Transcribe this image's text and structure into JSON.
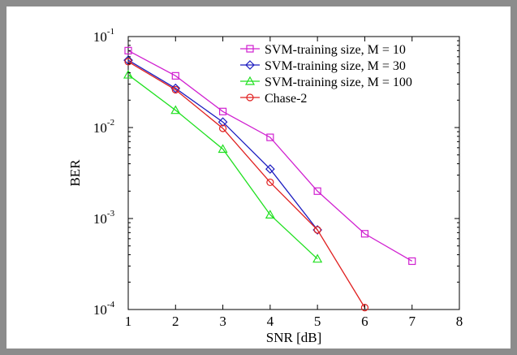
{
  "chart_data": {
    "type": "line",
    "xlabel": "SNR [dB]",
    "ylabel": "BER",
    "xlim": [
      1,
      8
    ],
    "ylim": [
      0.0001,
      0.1
    ],
    "yscale": "log",
    "grid": false,
    "legend_position": "top-right",
    "x_ticks": [
      "1",
      "2",
      "3",
      "4",
      "5",
      "6",
      "7",
      "8"
    ],
    "y_ticks": [
      {
        "base": "10",
        "exp": "-4",
        "value": 0.0001
      },
      {
        "base": "10",
        "exp": "-3",
        "value": 0.001
      },
      {
        "base": "10",
        "exp": "-2",
        "value": 0.01
      },
      {
        "base": "10",
        "exp": "-1",
        "value": 0.1
      }
    ],
    "series": [
      {
        "name": "SVM-training size, M = 10",
        "color": "#d020d0",
        "marker": "square",
        "x": [
          1,
          2,
          3,
          4,
          5,
          6,
          7
        ],
        "y": [
          0.07,
          0.037,
          0.015,
          0.0078,
          0.002,
          0.00068,
          0.00034
        ]
      },
      {
        "name": "SVM-training size, M = 30",
        "color": "#1c1cc0",
        "marker": "diamond",
        "x": [
          1,
          2,
          3,
          4,
          5
        ],
        "y": [
          0.055,
          0.027,
          0.0115,
          0.0035,
          0.00075
        ]
      },
      {
        "name": "SVM-training size, M = 100",
        "color": "#20e020",
        "marker": "triangle",
        "x": [
          1,
          2,
          3,
          4,
          5
        ],
        "y": [
          0.038,
          0.0155,
          0.0058,
          0.0011,
          0.00036
        ]
      },
      {
        "name": "Chase-2",
        "color": "#e02020",
        "marker": "circle",
        "x": [
          1,
          2,
          3,
          4,
          5,
          6
        ],
        "y": [
          0.053,
          0.026,
          0.0098,
          0.0025,
          0.00075,
          0.000105
        ]
      }
    ]
  }
}
